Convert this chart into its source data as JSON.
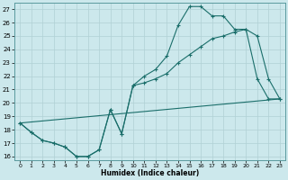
{
  "xlabel": "Humidex (Indice chaleur)",
  "bg_color": "#cce8ec",
  "grid_color": "#b0d0d4",
  "line_color": "#1a6e6a",
  "xlim": [
    -0.5,
    23.5
  ],
  "ylim": [
    15.7,
    27.5
  ],
  "xticks": [
    0,
    1,
    2,
    3,
    4,
    5,
    6,
    7,
    8,
    9,
    10,
    11,
    12,
    13,
    14,
    15,
    16,
    17,
    18,
    19,
    20,
    21,
    22,
    23
  ],
  "yticks": [
    16,
    17,
    18,
    19,
    20,
    21,
    22,
    23,
    24,
    25,
    26,
    27
  ],
  "line1_x": [
    0,
    1,
    2,
    3,
    4,
    5,
    6,
    7,
    8,
    9,
    10,
    11,
    12,
    13,
    14,
    15,
    16,
    17,
    18,
    19,
    20,
    21,
    22,
    23
  ],
  "line1_y": [
    18.5,
    17.8,
    17.2,
    17.0,
    16.7,
    16.0,
    16.0,
    16.5,
    19.5,
    17.7,
    21.3,
    21.5,
    21.8,
    22.2,
    23.0,
    23.6,
    24.2,
    24.8,
    25.0,
    25.3,
    25.5,
    21.8,
    20.3,
    20.3
  ],
  "line2_x": [
    0,
    1,
    2,
    3,
    4,
    5,
    6,
    7,
    8,
    9,
    10,
    11,
    12,
    13,
    14,
    15,
    16,
    17,
    18,
    19,
    20,
    21,
    22,
    23
  ],
  "line2_y": [
    18.5,
    17.8,
    17.2,
    17.0,
    16.7,
    16.0,
    16.0,
    16.5,
    19.5,
    17.7,
    21.3,
    22.0,
    22.5,
    23.5,
    25.8,
    27.2,
    27.2,
    26.5,
    26.5,
    25.5,
    25.5,
    25.0,
    21.8,
    20.3
  ],
  "line3_x": [
    0,
    23
  ],
  "line3_y": [
    18.5,
    20.3
  ]
}
